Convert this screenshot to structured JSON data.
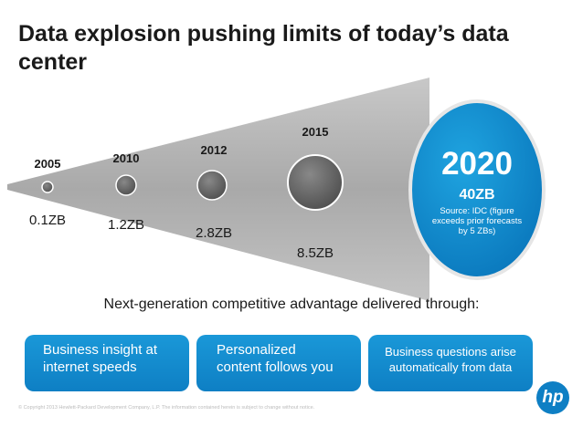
{
  "slide": {
    "title": "Data explosion pushing limits of today’s data center",
    "subtitle": "Next-generation competitive advantage delivered through:",
    "footer": "© Copyright 2013 Hewlett-Packard Development Company, L.P. The information contained herein is subject to change without notice."
  },
  "timeline": [
    {
      "year": "2005",
      "value": "0.1ZB"
    },
    {
      "year": "2010",
      "value": "1.2ZB"
    },
    {
      "year": "2012",
      "value": "2.8ZB"
    },
    {
      "year": "2015",
      "value": "8.5ZB"
    }
  ],
  "highlight": {
    "year": "2020",
    "value": "40ZB",
    "note": "Source: IDC (figure exceeds prior forecasts by 5 ZBs)"
  },
  "boxes": [
    {
      "lines": [
        "Business insight at",
        "internet speeds"
      ]
    },
    {
      "lines": [
        "Personalized",
        "content follows you"
      ]
    },
    {
      "lines": [
        "Business questions arise",
        "automatically from data"
      ]
    }
  ],
  "logo": {
    "text": "hp"
  },
  "colors": {
    "accent": "#0e7fc4",
    "funnel": "#b0b0b0",
    "dot": "#6b6b6b"
  }
}
